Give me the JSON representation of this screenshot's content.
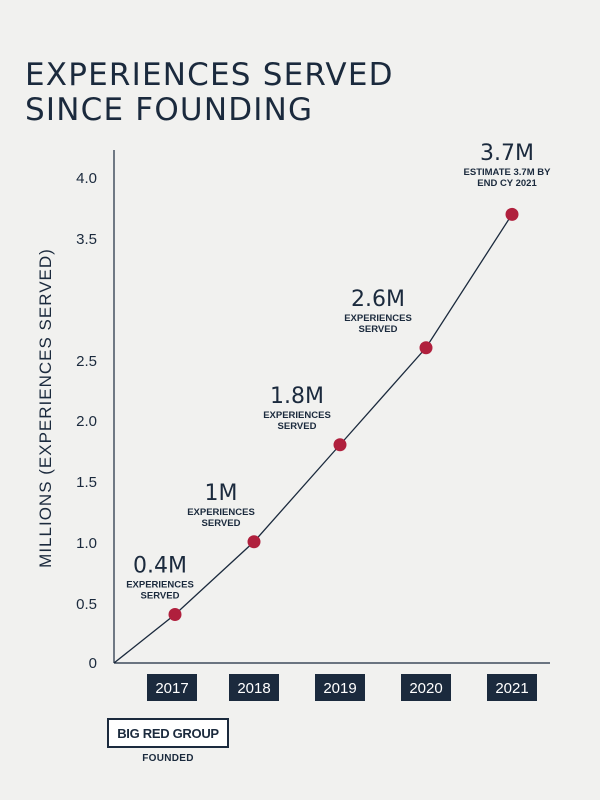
{
  "title": {
    "line1": "EXPERIENCES SERVED",
    "line2": "SINCE FOUNDING"
  },
  "chart_data": {
    "type": "line",
    "ylabel": "MILLIONS (EXPERIENCES SERVED)",
    "yticks": [
      "0",
      "0.5",
      "1.0",
      "1.5",
      "2.0",
      "2.5",
      "3.5",
      "4.0"
    ],
    "ylim": [
      0,
      4.0
    ],
    "categories": [
      "2017",
      "2018",
      "2019",
      "2020",
      "2021"
    ],
    "values": [
      0.4,
      1.0,
      1.8,
      2.6,
      3.7
    ],
    "point_labels": [
      {
        "value": "0.4M",
        "caption": [
          "EXPERIENCES",
          "SERVED"
        ]
      },
      {
        "value": "1M",
        "caption": [
          "EXPERIENCES",
          "SERVED"
        ]
      },
      {
        "value": "1.8M",
        "caption": [
          "EXPERIENCES",
          "SERVED"
        ]
      },
      {
        "value": "2.6M",
        "caption": [
          "EXPERIENCES",
          "SERVED"
        ]
      },
      {
        "value": "3.7M",
        "caption": [
          "ESTIMATE 3.7M BY",
          "END CY 2021"
        ]
      }
    ],
    "grid": false,
    "colors": {
      "line": "#1b2a3d",
      "marker": "#b0203d",
      "year_box": "#1b2a3d"
    }
  },
  "footer": {
    "logo_text": "BIG RED GROUP",
    "logo_caption": "FOUNDED"
  }
}
